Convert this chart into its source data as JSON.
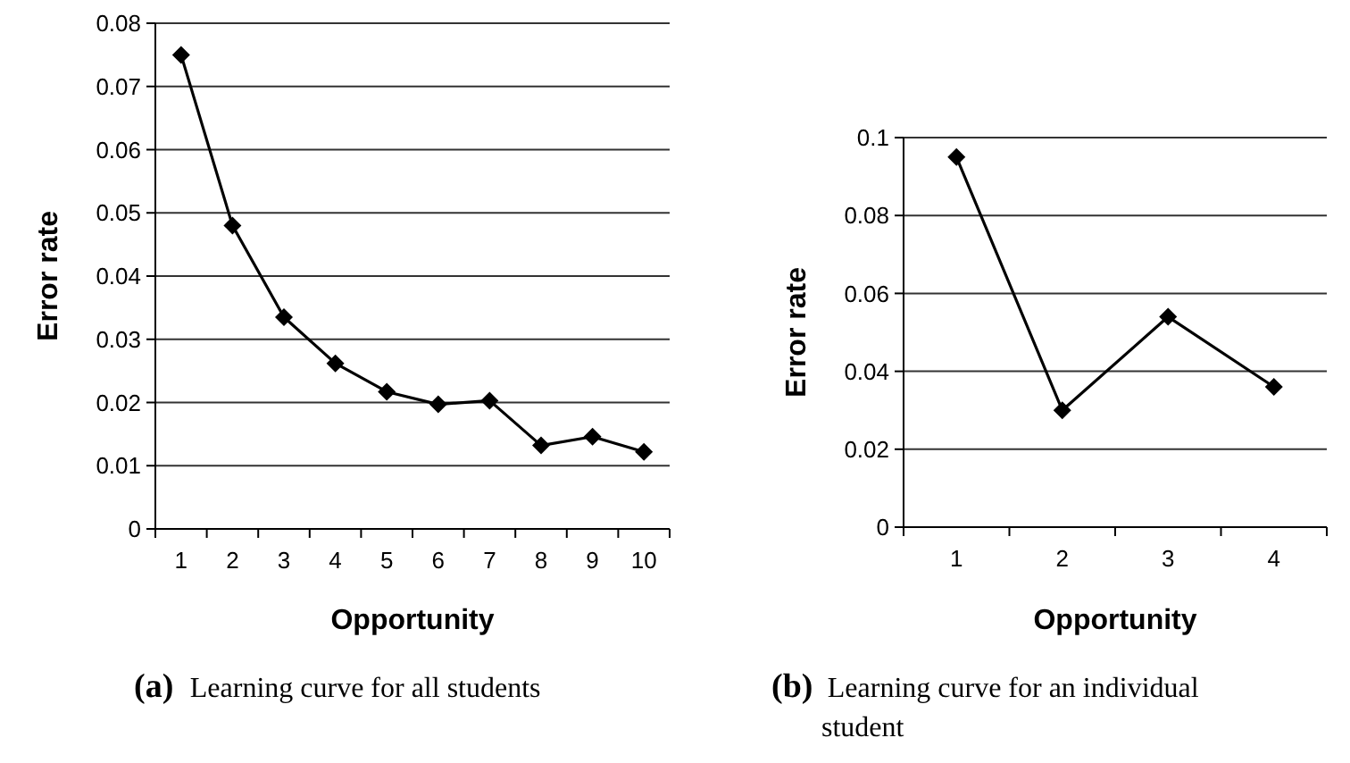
{
  "chart_data": [
    {
      "type": "line",
      "xlabel": "Opportunity",
      "ylabel": "Error rate",
      "categories": [
        "1",
        "2",
        "3",
        "4",
        "5",
        "6",
        "7",
        "8",
        "9",
        "10"
      ],
      "series": [
        {
          "color": "#000000",
          "values": [
            0.075,
            0.048,
            0.0335,
            0.0262,
            0.0217,
            0.0197,
            0.0203,
            0.0132,
            0.0146,
            0.0122
          ]
        }
      ],
      "ylim": [
        0,
        0.08
      ],
      "yticks": [
        0,
        0.01,
        0.02,
        0.03,
        0.04,
        0.05,
        0.06,
        0.07,
        0.08
      ],
      "grid": "y",
      "marker": "diamond",
      "line_style": "solid",
      "annotations": [
        "(a) Learning curve for all students"
      ]
    },
    {
      "type": "line",
      "xlabel": "Opportunity",
      "ylabel": "Error rate",
      "categories": [
        "1",
        "2",
        "3",
        "4"
      ],
      "series": [
        {
          "color": "#000000",
          "values": [
            0.095,
            0.03,
            0.054,
            0.036
          ]
        }
      ],
      "ylim": [
        0,
        0.1
      ],
      "yticks": [
        0,
        0.02,
        0.04,
        0.06,
        0.08,
        0.1
      ],
      "grid": "y",
      "marker": "diamond",
      "line_style": "solid",
      "annotations": [
        "(b) Learning curve for an individual student"
      ]
    }
  ]
}
